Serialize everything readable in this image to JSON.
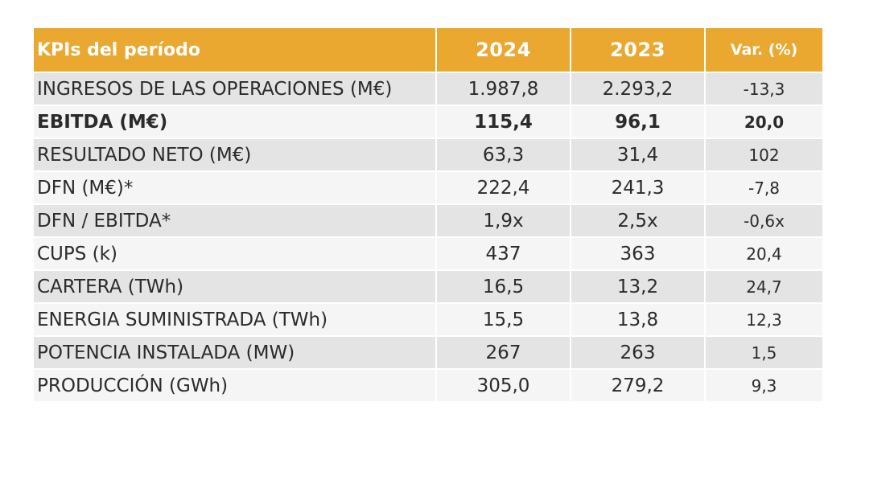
{
  "table": {
    "headers": {
      "label": "KPIs del período",
      "year_current": "2024",
      "year_previous": "2023",
      "variation": "Var. (%)"
    },
    "rows": [
      {
        "label": "INGRESOS DE LAS OPERACIONES (M€)",
        "current": "1.987,8",
        "previous": "2.293,2",
        "variation": "-13,3"
      },
      {
        "label": "EBITDA (M€)",
        "current": "115,4",
        "previous": "96,1",
        "variation": "20,0"
      },
      {
        "label": "RESULTADO NETO (M€)",
        "current": "63,3",
        "previous": "31,4",
        "variation": "102"
      },
      {
        "label": "DFN (M€)*",
        "current": "222,4",
        "previous": "241,3",
        "variation": "-7,8"
      },
      {
        "label": "DFN / EBITDA*",
        "current": "1,9x",
        "previous": "2,5x",
        "variation": "-0,6x"
      },
      {
        "label": "CUPS (k)",
        "current": "437",
        "previous": "363",
        "variation": "20,4"
      },
      {
        "label": "CARTERA (TWh)",
        "current": "16,5",
        "previous": "13,2",
        "variation": "24,7"
      },
      {
        "label": "ENERGIA SUMINISTRADA (TWh)",
        "current": "15,5",
        "previous": "13,8",
        "variation": "12,3"
      },
      {
        "label": "POTENCIA INSTALADA (MW)",
        "current": "267",
        "previous": "263",
        "variation": "1,5"
      },
      {
        "label": "PRODUCCIÓN (GWh)",
        "current": "305,0",
        "previous": "279,2",
        "variation": "9,3"
      }
    ]
  },
  "colors": {
    "header_background": "#eaa831",
    "header_text": "#ffffff",
    "row_shaded": "#e4e4e4",
    "row_light": "#f5f5f5"
  }
}
